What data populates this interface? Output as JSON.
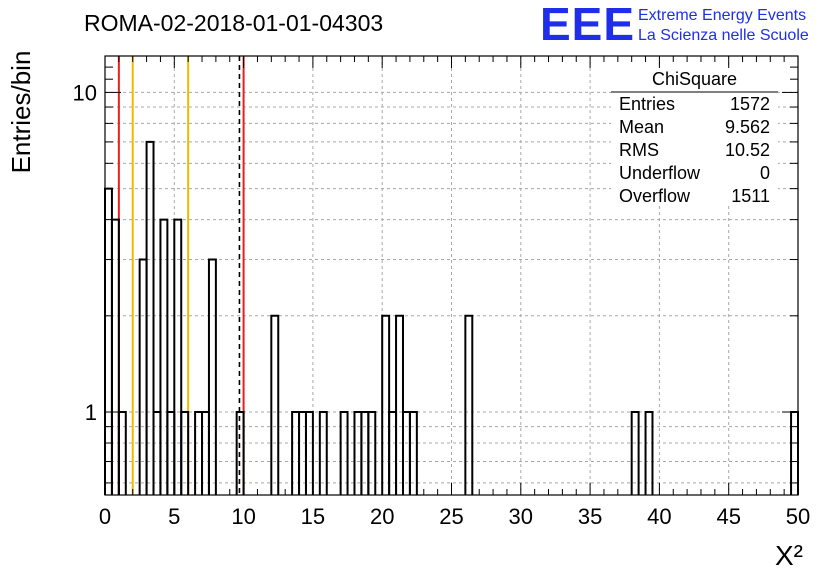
{
  "chart_data": {
    "type": "bar",
    "title": "ROMA-02-2018-01-01-04303",
    "xlabel": "X²",
    "ylabel": "Entries/bin",
    "xlim": [
      0,
      50
    ],
    "ylim": [
      0.55,
      13
    ],
    "y_scale": "log",
    "grid": true,
    "x_ticks": [
      0,
      5,
      10,
      15,
      20,
      25,
      30,
      35,
      40,
      45,
      50
    ],
    "y_tick_labels": [
      {
        "value": 1,
        "label": "1"
      },
      {
        "value": 10,
        "label": "10"
      }
    ],
    "bin_width": 0.5,
    "bins": [
      {
        "x": 0.0,
        "y": 5
      },
      {
        "x": 0.5,
        "y": 4
      },
      {
        "x": 1.0,
        "y": 1
      },
      {
        "x": 2.5,
        "y": 3
      },
      {
        "x": 3.0,
        "y": 7
      },
      {
        "x": 3.5,
        "y": 1
      },
      {
        "x": 4.0,
        "y": 4
      },
      {
        "x": 4.5,
        "y": 1
      },
      {
        "x": 5.0,
        "y": 4
      },
      {
        "x": 5.5,
        "y": 1
      },
      {
        "x": 6.5,
        "y": 1
      },
      {
        "x": 7.0,
        "y": 1
      },
      {
        "x": 7.5,
        "y": 3
      },
      {
        "x": 9.5,
        "y": 1
      },
      {
        "x": 12.0,
        "y": 2
      },
      {
        "x": 13.5,
        "y": 1
      },
      {
        "x": 14.0,
        "y": 1
      },
      {
        "x": 14.5,
        "y": 1
      },
      {
        "x": 15.5,
        "y": 1
      },
      {
        "x": 17.0,
        "y": 1
      },
      {
        "x": 18.0,
        "y": 1
      },
      {
        "x": 18.5,
        "y": 1
      },
      {
        "x": 19.0,
        "y": 1
      },
      {
        "x": 20.0,
        "y": 2
      },
      {
        "x": 20.5,
        "y": 1
      },
      {
        "x": 21.0,
        "y": 2
      },
      {
        "x": 21.5,
        "y": 1
      },
      {
        "x": 22.0,
        "y": 1
      },
      {
        "x": 26.0,
        "y": 2
      },
      {
        "x": 38.0,
        "y": 1
      },
      {
        "x": 39.0,
        "y": 1
      },
      {
        "x": 49.5,
        "y": 1
      }
    ],
    "markers": [
      {
        "x": 1,
        "color": "#e8201c",
        "style": "solid"
      },
      {
        "x": 2,
        "color": "#f2b705",
        "style": "solid"
      },
      {
        "x": 6,
        "color": "#f2b705",
        "style": "solid"
      },
      {
        "x": 9.7,
        "color": "#000000",
        "style": "dashed"
      },
      {
        "x": 10,
        "color": "#e8201c",
        "style": "solid"
      }
    ],
    "stats": {
      "name": "ChiSquare",
      "rows": [
        {
          "label": "Entries",
          "value": "1572"
        },
        {
          "label": "Mean",
          "value": "9.562"
        },
        {
          "label": "RMS",
          "value": "10.52"
        },
        {
          "label": "Underflow",
          "value": "0"
        },
        {
          "label": "Overflow",
          "value": "1511"
        }
      ]
    }
  },
  "logo": {
    "mark": "EEE",
    "line1": "Extreme Energy Events",
    "line2": "La Scienza nelle Scuole",
    "color": "#1f2ee8"
  }
}
